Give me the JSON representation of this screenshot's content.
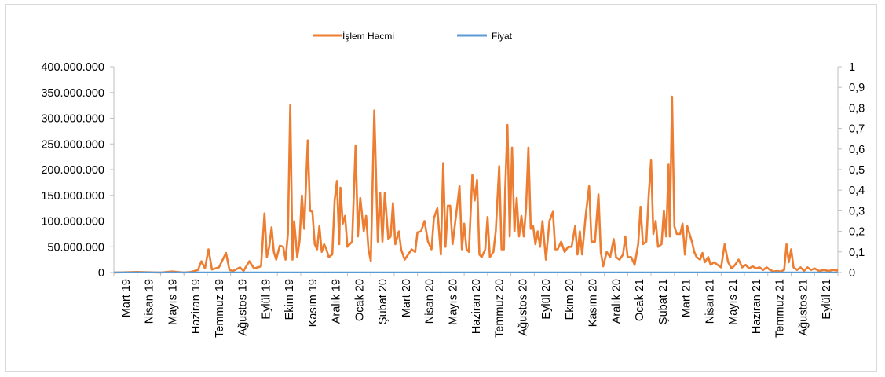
{
  "chart_data": {
    "type": "line",
    "legend": {
      "placement": "top-center",
      "entries": [
        "İşlem Hacmi",
        "Fiyat"
      ]
    },
    "colors": {
      "volume": "#ed7d31",
      "price": "#5b9bd5",
      "axis": "#bfbfbf"
    },
    "x_ticks": [
      "Mart 19",
      "Nisan 19",
      "Mayıs 19",
      "Haziran 19",
      "Temmuz 19",
      "Ağustos 19",
      "Eylül 19",
      "Ekim 19",
      "Kasım 19",
      "Aralık 19",
      "Ocak 20",
      "Şubat 20",
      "Mart 20",
      "Nisan 20",
      "Mayıs 20",
      "Haziran 20",
      "Temmuz 20",
      "Ağustos 20",
      "Eylül 20",
      "Ekim 20",
      "Kasım 20",
      "Aralık 20",
      "Ocak 21",
      "Şubat 21",
      "Mart 21",
      "Nisan 21",
      "Mayıs 21",
      "Haziran 21",
      "Temmuz 21",
      "Ağustos 21",
      "Eylül 21"
    ],
    "y_left": {
      "ylim": [
        0,
        400000000
      ],
      "ticks": [
        "0",
        "50.000.000",
        "100.000.000",
        "150.000.000",
        "200.000.000",
        "250.000.000",
        "300.000.000",
        "350.000.000",
        "400.000.000"
      ]
    },
    "y_right": {
      "ylim": [
        0,
        1
      ],
      "ticks": [
        "0",
        "0,1",
        "0,2",
        "0,3",
        "0,4",
        "0,5",
        "0,6",
        "0,7",
        "0,8",
        "0,9",
        "1"
      ]
    },
    "grid": false,
    "series": [
      {
        "name": "İşlem Hacmi",
        "axis": "left",
        "points": [
          [
            0,
            0
          ],
          [
            1,
            1000000
          ],
          [
            2,
            0
          ],
          [
            2.5,
            2000000
          ],
          [
            3,
            0
          ],
          [
            3.3,
            1000000
          ],
          [
            3.6,
            5000000
          ],
          [
            3.75,
            22000000
          ],
          [
            3.9,
            8000000
          ],
          [
            4.05,
            45000000
          ],
          [
            4.2,
            6000000
          ],
          [
            4.5,
            10000000
          ],
          [
            4.8,
            38000000
          ],
          [
            4.95,
            5000000
          ],
          [
            5.1,
            3000000
          ],
          [
            5.4,
            10000000
          ],
          [
            5.55,
            3000000
          ],
          [
            5.8,
            22000000
          ],
          [
            6.0,
            8000000
          ],
          [
            6.3,
            12000000
          ],
          [
            6.45,
            115000000
          ],
          [
            6.55,
            30000000
          ],
          [
            6.65,
            50000000
          ],
          [
            6.75,
            88000000
          ],
          [
            6.85,
            40000000
          ],
          [
            6.95,
            25000000
          ],
          [
            7.1,
            52000000
          ],
          [
            7.25,
            50000000
          ],
          [
            7.35,
            25000000
          ],
          [
            7.45,
            75000000
          ],
          [
            7.55,
            325000000
          ],
          [
            7.65,
            25000000
          ],
          [
            7.72,
            100000000
          ],
          [
            7.85,
            30000000
          ],
          [
            7.95,
            60000000
          ],
          [
            8.05,
            150000000
          ],
          [
            8.15,
            85000000
          ],
          [
            8.3,
            257000000
          ],
          [
            8.4,
            120000000
          ],
          [
            8.5,
            118000000
          ],
          [
            8.6,
            55000000
          ],
          [
            8.7,
            45000000
          ],
          [
            8.8,
            90000000
          ],
          [
            8.9,
            40000000
          ],
          [
            9.0,
            55000000
          ],
          [
            9.1,
            45000000
          ],
          [
            9.2,
            30000000
          ],
          [
            9.35,
            35000000
          ],
          [
            9.45,
            140000000
          ],
          [
            9.55,
            178000000
          ],
          [
            9.65,
            55000000
          ],
          [
            9.7,
            165000000
          ],
          [
            9.8,
            95000000
          ],
          [
            9.9,
            110000000
          ],
          [
            10.0,
            50000000
          ],
          [
            10.1,
            55000000
          ],
          [
            10.2,
            60000000
          ],
          [
            10.35,
            247000000
          ],
          [
            10.45,
            70000000
          ],
          [
            10.55,
            145000000
          ],
          [
            10.7,
            80000000
          ],
          [
            10.8,
            110000000
          ],
          [
            10.9,
            45000000
          ],
          [
            11.0,
            22000000
          ],
          [
            11.15,
            315000000
          ],
          [
            11.3,
            60000000
          ],
          [
            11.4,
            155000000
          ],
          [
            11.5,
            60000000
          ],
          [
            11.6,
            155000000
          ],
          [
            11.75,
            65000000
          ],
          [
            11.85,
            70000000
          ],
          [
            11.95,
            135000000
          ],
          [
            12.05,
            55000000
          ],
          [
            12.2,
            80000000
          ],
          [
            12.3,
            45000000
          ],
          [
            12.45,
            25000000
          ],
          [
            12.6,
            35000000
          ],
          [
            12.75,
            45000000
          ],
          [
            12.9,
            40000000
          ],
          [
            13.0,
            78000000
          ],
          [
            13.15,
            80000000
          ],
          [
            13.3,
            100000000
          ],
          [
            13.45,
            60000000
          ],
          [
            13.6,
            45000000
          ],
          [
            13.7,
            105000000
          ],
          [
            13.85,
            125000000
          ],
          [
            14.0,
            35000000
          ],
          [
            14.1,
            213000000
          ],
          [
            14.2,
            50000000
          ],
          [
            14.3,
            130000000
          ],
          [
            14.4,
            130000000
          ],
          [
            14.5,
            55000000
          ],
          [
            14.65,
            110000000
          ],
          [
            14.8,
            168000000
          ],
          [
            14.9,
            45000000
          ],
          [
            15.0,
            95000000
          ],
          [
            15.1,
            45000000
          ],
          [
            15.2,
            40000000
          ],
          [
            15.35,
            190000000
          ],
          [
            15.45,
            140000000
          ],
          [
            15.55,
            180000000
          ],
          [
            15.65,
            35000000
          ],
          [
            15.75,
            30000000
          ],
          [
            15.9,
            45000000
          ],
          [
            16.0,
            108000000
          ],
          [
            16.1,
            30000000
          ],
          [
            16.25,
            40000000
          ],
          [
            16.35,
            80000000
          ],
          [
            16.5,
            207000000
          ],
          [
            16.6,
            45000000
          ],
          [
            16.7,
            45000000
          ],
          [
            16.75,
            155000000
          ],
          [
            16.85,
            287000000
          ],
          [
            16.95,
            70000000
          ],
          [
            17.05,
            243000000
          ],
          [
            17.15,
            80000000
          ],
          [
            17.25,
            145000000
          ],
          [
            17.35,
            70000000
          ],
          [
            17.45,
            110000000
          ],
          [
            17.55,
            70000000
          ],
          [
            17.65,
            125000000
          ],
          [
            17.75,
            243000000
          ],
          [
            17.85,
            85000000
          ],
          [
            17.95,
            90000000
          ],
          [
            18.05,
            55000000
          ],
          [
            18.15,
            80000000
          ],
          [
            18.25,
            50000000
          ],
          [
            18.35,
            100000000
          ],
          [
            18.5,
            25000000
          ],
          [
            18.65,
            100000000
          ],
          [
            18.8,
            118000000
          ],
          [
            18.9,
            45000000
          ],
          [
            19.0,
            45000000
          ],
          [
            19.15,
            60000000
          ],
          [
            19.3,
            40000000
          ],
          [
            19.45,
            50000000
          ],
          [
            19.6,
            50000000
          ],
          [
            19.75,
            90000000
          ],
          [
            19.85,
            35000000
          ],
          [
            19.95,
            80000000
          ],
          [
            20.05,
            35000000
          ],
          [
            20.2,
            110000000
          ],
          [
            20.35,
            168000000
          ],
          [
            20.45,
            60000000
          ],
          [
            20.6,
            60000000
          ],
          [
            20.75,
            152000000
          ],
          [
            20.85,
            40000000
          ],
          [
            20.95,
            12000000
          ],
          [
            21.1,
            40000000
          ],
          [
            21.25,
            30000000
          ],
          [
            21.4,
            65000000
          ],
          [
            21.5,
            30000000
          ],
          [
            21.65,
            25000000
          ],
          [
            21.8,
            35000000
          ],
          [
            21.9,
            70000000
          ],
          [
            22.0,
            30000000
          ],
          [
            22.15,
            30000000
          ],
          [
            22.3,
            15000000
          ],
          [
            22.45,
            55000000
          ],
          [
            22.55,
            128000000
          ],
          [
            22.65,
            55000000
          ],
          [
            22.8,
            60000000
          ],
          [
            22.9,
            150000000
          ],
          [
            23.0,
            218000000
          ],
          [
            23.1,
            75000000
          ],
          [
            23.2,
            100000000
          ],
          [
            23.3,
            50000000
          ],
          [
            23.45,
            55000000
          ],
          [
            23.55,
            120000000
          ],
          [
            23.65,
            70000000
          ],
          [
            23.75,
            210000000
          ],
          [
            23.8,
            70000000
          ],
          [
            23.9,
            342000000
          ],
          [
            24.0,
            90000000
          ],
          [
            24.1,
            75000000
          ],
          [
            24.25,
            75000000
          ],
          [
            24.35,
            95000000
          ],
          [
            24.45,
            35000000
          ],
          [
            24.55,
            90000000
          ],
          [
            24.65,
            75000000
          ],
          [
            24.75,
            60000000
          ],
          [
            24.85,
            40000000
          ],
          [
            24.95,
            30000000
          ],
          [
            25.1,
            25000000
          ],
          [
            25.2,
            38000000
          ],
          [
            25.3,
            20000000
          ],
          [
            25.45,
            30000000
          ],
          [
            25.55,
            15000000
          ],
          [
            25.7,
            20000000
          ],
          [
            25.85,
            15000000
          ],
          [
            26.0,
            10000000
          ],
          [
            26.15,
            55000000
          ],
          [
            26.3,
            20000000
          ],
          [
            26.45,
            8000000
          ],
          [
            26.6,
            15000000
          ],
          [
            26.75,
            25000000
          ],
          [
            26.9,
            10000000
          ],
          [
            27.05,
            15000000
          ],
          [
            27.2,
            8000000
          ],
          [
            27.35,
            12000000
          ],
          [
            27.5,
            8000000
          ],
          [
            27.65,
            10000000
          ],
          [
            27.8,
            5000000
          ],
          [
            27.95,
            10000000
          ],
          [
            28.1,
            5000000
          ],
          [
            28.25,
            2000000
          ],
          [
            28.4,
            3000000
          ],
          [
            28.55,
            2000000
          ],
          [
            28.7,
            5000000
          ],
          [
            28.8,
            55000000
          ],
          [
            28.9,
            20000000
          ],
          [
            29.0,
            45000000
          ],
          [
            29.1,
            10000000
          ],
          [
            29.25,
            5000000
          ],
          [
            29.4,
            10000000
          ],
          [
            29.55,
            3000000
          ],
          [
            29.7,
            10000000
          ],
          [
            29.85,
            5000000
          ],
          [
            30.0,
            8000000
          ],
          [
            30.2,
            3000000
          ],
          [
            30.4,
            5000000
          ],
          [
            30.6,
            3000000
          ],
          [
            30.8,
            5000000
          ],
          [
            31.0,
            4000000
          ]
        ]
      },
      {
        "name": "Fiyat",
        "axis": "right",
        "points": [
          [
            0,
            0.001
          ],
          [
            31,
            0.001
          ]
        ]
      }
    ]
  }
}
